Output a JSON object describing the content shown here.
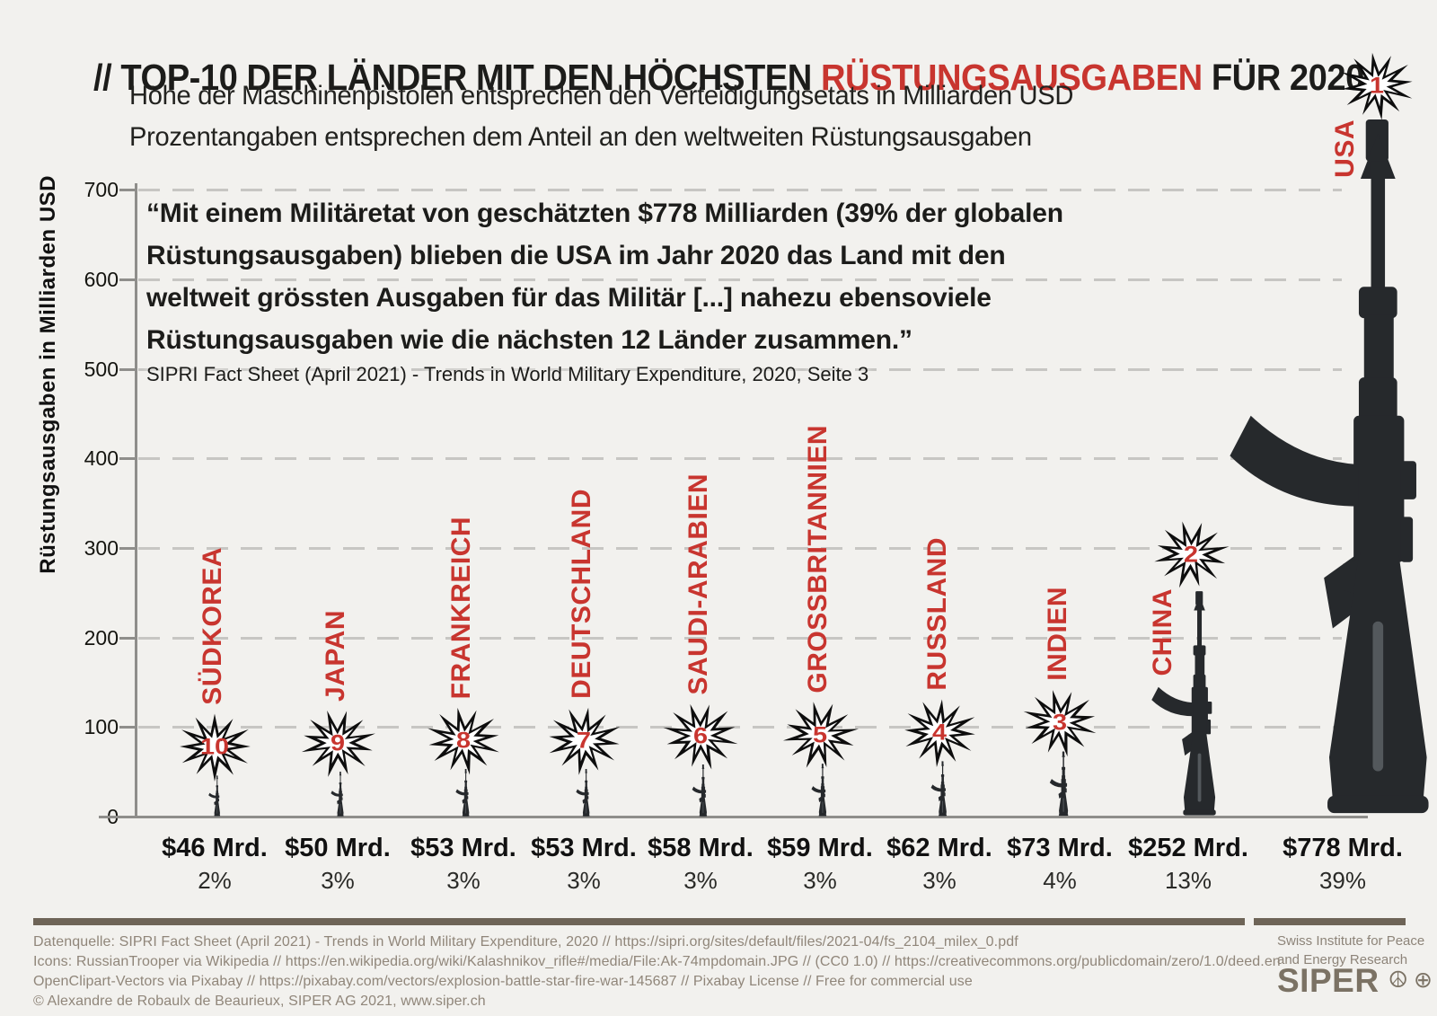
{
  "title": {
    "part1": "// TOP-10 DER LÄNDER MIT DEN HÖCHSTEN ",
    "accent": "RÜSTUNGSAUSGABEN",
    "part2": " FÜR 2020"
  },
  "subtitle1": "Höhe der Maschinenpistolen entsprechen den Verteidigungsetats in Milliarden USD",
  "subtitle2": "Prozentangaben entsprechen dem Anteil an den weltweiten Rüstungsausgaben",
  "quote": {
    "text": "“Mit einem Militäretat von geschätzten $778 Milliarden (39% der globalen\nRüstungsausgaben) blieben die USA im Jahr 2020 das Land mit den\nweltweit grössten Ausgaben für das Militär [...] nahezu ebensoviele\nRüstungsausgaben wie die nächsten 12 Länder zusammen.”",
    "source": "SIPRI Fact Sheet (April 2021) - Trends in World Military Expenditure, 2020, Seite 3"
  },
  "y_axis": {
    "label": "Rüstungsausgaben in Milliarden USD",
    "ticks": [
      0,
      100,
      200,
      300,
      400,
      500,
      600,
      700
    ]
  },
  "chart_data": {
    "type": "bar",
    "title": "Top-10 der Länder mit den höchsten Rüstungsausgaben für 2020",
    "ylabel": "Rüstungsausgaben in Milliarden USD",
    "ylim": [
      0,
      700
    ],
    "grid": "dashed horizontal every 100",
    "bar_glyph": "AK-74 rifle silhouette, height encodes value",
    "categories": [
      "SÜDKOREA",
      "JAPAN",
      "FRANKREICH",
      "DEUTSCHLAND",
      "SAUDI-ARABIEN",
      "GROSSBRITANNIEN",
      "RUSSLAND",
      "INDIEN",
      "CHINA",
      "USA"
    ],
    "values": [
      46,
      50,
      53,
      53,
      58,
      59,
      62,
      73,
      252,
      778
    ],
    "countries": [
      {
        "name": "SÜDKOREA",
        "rank": "10",
        "value": 46,
        "value_label": "$46 Mrd.",
        "share_label": "2%"
      },
      {
        "name": "JAPAN",
        "rank": "9",
        "value": 50,
        "value_label": "$50 Mrd.",
        "share_label": "3%"
      },
      {
        "name": "FRANKREICH",
        "rank": "8",
        "value": 53,
        "value_label": "$53 Mrd.",
        "share_label": "3%"
      },
      {
        "name": "DEUTSCHLAND",
        "rank": "7",
        "value": 53,
        "value_label": "$53 Mrd.",
        "share_label": "3%"
      },
      {
        "name": "SAUDI-ARABIEN",
        "rank": "6",
        "value": 58,
        "value_label": "$58 Mrd.",
        "share_label": "3%"
      },
      {
        "name": "GROSSBRITANNIEN",
        "rank": "5",
        "value": 59,
        "value_label": "$59 Mrd.",
        "share_label": "3%"
      },
      {
        "name": "RUSSLAND",
        "rank": "4",
        "value": 62,
        "value_label": "$62 Mrd.",
        "share_label": "3%"
      },
      {
        "name": "INDIEN",
        "rank": "3",
        "value": 73,
        "value_label": "$73 Mrd.",
        "share_label": "4%"
      },
      {
        "name": "CHINA",
        "rank": "2",
        "value": 252,
        "value_label": "$252 Mrd.",
        "share_label": "13%"
      },
      {
        "name": "USA",
        "rank": "1",
        "value": 778,
        "value_label": "$778 Mrd.",
        "share_label": "39%"
      }
    ],
    "colors": {
      "accent_red": "#c8352f",
      "gun_dark": "#26292c",
      "background": "#f2f1ee"
    }
  },
  "footer": {
    "lines": [
      "Datenquelle: SIPRI Fact Sheet (April 2021) - Trends in World Military Expenditure, 2020 // https://sipri.org/sites/default/files/2021-04/fs_2104_milex_0.pdf",
      "Icons: RussianTrooper via Wikipedia // https://en.wikipedia.org/wiki/Kalashnikov_rifle#/media/File:Ak-74mpdomain.JPG // (CC0 1.0) // https://creativecommons.org/publicdomain/zero/1.0/deed.en",
      "OpenClipart-Vectors via Pixabay // https://pixabay.com/vectors/explosion-battle-star-fire-war-145687 // Pixabay License // Free for commercial use",
      "© Alexandre de Robaulx de Beaurieux, SIPER AG 2021, www.siper.ch"
    ],
    "brand": {
      "org_line1": "Swiss Institute for Peace",
      "org_line2": "and Energy Research",
      "name": "SIPER",
      "symbols": "☮⊕"
    }
  }
}
